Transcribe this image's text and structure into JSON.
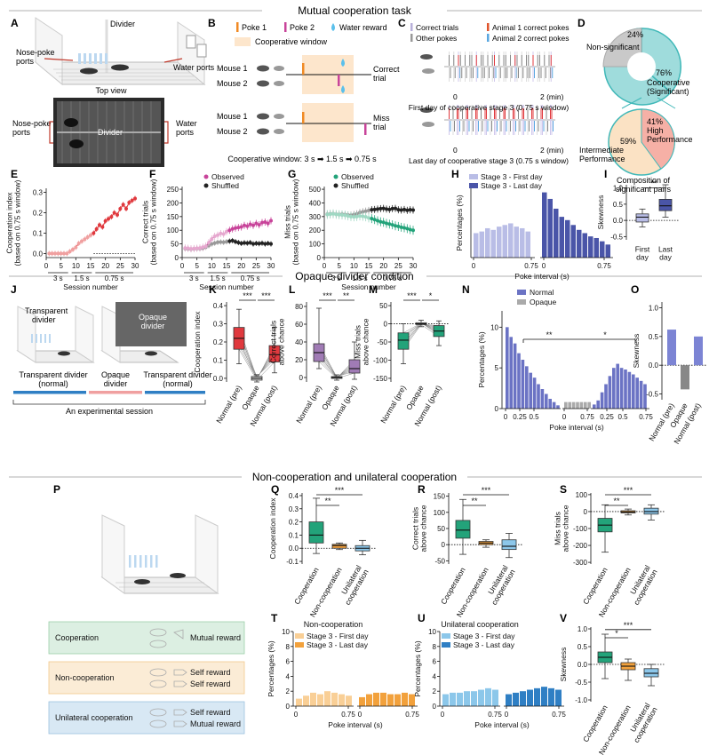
{
  "colors": {
    "red": "#e0393e",
    "lightred": "#f0a0a0",
    "pink": "#c8449a",
    "lightpink": "#e6a8cf",
    "green": "#23a37a",
    "lightgreen": "#9fd8c3",
    "gray": "#999999",
    "black": "#1a1a1a",
    "navy": "#4a55a8",
    "lavender": "#b9bde6",
    "orange": "#f2a13c",
    "lightorange": "#f9cf96",
    "blue": "#2f7fc4",
    "lightblue": "#8cc7ea",
    "teal": "#40c0c0",
    "salmon": "#f4a9a0",
    "coopbox": "#dcefe2",
    "noncoopbox": "#fbecd6",
    "unibox": "#d8e8f4"
  },
  "sections": {
    "mutual": "Mutual cooperation task",
    "opaque": "Opaque-divider condition",
    "noncoop": "Non-cooperation and unilateral cooperation"
  },
  "panel_letters": {
    "A": "A",
    "B": "B",
    "C": "C",
    "D": "D",
    "E": "E",
    "F": "F",
    "G": "G",
    "H": "H",
    "I": "I",
    "J": "J",
    "K": "K",
    "L": "L",
    "M": "M",
    "N": "N",
    "O": "O",
    "P": "P",
    "Q": "Q",
    "R": "R",
    "S": "S",
    "T": "T",
    "U": "U",
    "V": "V"
  },
  "A": {
    "divider": "Divider",
    "nose_poke": "Nose-poke\nports",
    "water_ports": "Water ports",
    "top_view": "Top view",
    "divider2": "Divider",
    "nose_poke2": "Nose-poke\nports",
    "water_ports2": "Water\nports"
  },
  "B": {
    "poke1": "Poke 1",
    "poke2": "Poke 2",
    "water": "Water reward",
    "window": "Cooperative window",
    "mouse1": "Mouse 1",
    "mouse2": "Mouse 2",
    "correct": "Correct\ntrial",
    "miss": "Miss\ntrial",
    "caption": "Cooperative window: 3 s ➡ 1.5 s ➡ 0.75 s"
  },
  "C": {
    "correct": "Correct trials",
    "other": "Other pokes",
    "a1": "Animal 1 correct pokes",
    "a2": "Animal 2 correct pokes",
    "t0": "0",
    "t2": "2 (min)",
    "first": "First day of cooperative stage 3 (0.75 s window)",
    "last": "Last day of cooperative stage 3 (0.75 s window)"
  },
  "D": {
    "nonsig_pct": "24%",
    "nonsig": "Non-significant",
    "coop_pct": "76%",
    "coop": "Cooperative\n(Significant)",
    "high_pct": "41%",
    "high": "High\nPerformance",
    "inter_pct": "59%",
    "inter": "Intermediate\nPerformance",
    "caption": "Composition of\nsignificant pairs"
  },
  "E": {
    "ylabel": "Cooperation index\n(based on 0.75 s window)",
    "xlabel": "Session number",
    "yticks": [
      "0.0",
      "0.1",
      "0.2",
      "0.3"
    ],
    "xticks": [
      "0",
      "5",
      "10",
      "15",
      "20",
      "25",
      "30"
    ],
    "stages": [
      "3 s",
      "1.5 s",
      "0.75 s"
    ],
    "observed": [
      0.0,
      0.0,
      0.0,
      0.0,
      0.0,
      0.0,
      0.0,
      0.01,
      0.02,
      0.03,
      0.05,
      0.06,
      0.07,
      0.08,
      0.09,
      0.1,
      0.12,
      0.14,
      0.13,
      0.16,
      0.17,
      0.18,
      0.2,
      0.19,
      0.22,
      0.24,
      0.22,
      0.25,
      0.26,
      0.27
    ]
  },
  "F": {
    "ylabel": "Correct trials\n(based on 0.75 s window)",
    "xlabel": "Session number",
    "legend": [
      "Observed",
      "Shuffled"
    ],
    "yticks": [
      "0",
      "50",
      "100",
      "150",
      "200",
      "250"
    ],
    "xticks": [
      "0",
      "5",
      "10",
      "15",
      "20",
      "25",
      "30"
    ],
    "stages": [
      "3 s",
      "1.5 s",
      "0.75 s"
    ],
    "observed": [
      35,
      34,
      32,
      33,
      34,
      35,
      38,
      42,
      55,
      68,
      78,
      82,
      88,
      86,
      95,
      100,
      105,
      108,
      110,
      112,
      118,
      115,
      122,
      118,
      125,
      120,
      128,
      130,
      125,
      135
    ],
    "shuffled": [
      33,
      32,
      31,
      32,
      33,
      33,
      34,
      38,
      44,
      50,
      53,
      56,
      57,
      56,
      58,
      60,
      62,
      58,
      55,
      52,
      54,
      53,
      55,
      50,
      52,
      51,
      53,
      50,
      52,
      50
    ]
  },
  "G": {
    "ylabel": "Miss trials\n(based on 0.75 s window)",
    "xlabel": "Session number",
    "legend": [
      "Observed",
      "Shuffled"
    ],
    "yticks": [
      "0",
      "100",
      "200",
      "300",
      "400",
      "500"
    ],
    "xticks": [
      "0",
      "5",
      "10",
      "15",
      "20",
      "25",
      "30"
    ],
    "stages": [
      "3 s",
      "1.5 s",
      "0.75 s"
    ],
    "observed": [
      315,
      318,
      320,
      316,
      314,
      312,
      310,
      305,
      300,
      298,
      300,
      305,
      302,
      298,
      290,
      285,
      278,
      270,
      262,
      258,
      250,
      245,
      240,
      232,
      228,
      222,
      218,
      212,
      205,
      200
    ],
    "shuffled": [
      318,
      320,
      322,
      318,
      316,
      318,
      315,
      312,
      310,
      315,
      320,
      330,
      335,
      340,
      345,
      350,
      352,
      355,
      358,
      360,
      355,
      352,
      358,
      360,
      350,
      348,
      352,
      346,
      350,
      348
    ]
  },
  "H": {
    "legend": [
      "Stage 3 - First day",
      "Stage 3 - Last day"
    ],
    "ylabel": "Percentages (%)",
    "xlabel": "Poke interval (s)",
    "xticks": [
      "0",
      "0.75",
      "0",
      "0.75"
    ],
    "first": [
      3,
      3.2,
      3.6,
      3.4,
      3.8,
      4,
      4.2,
      3.8,
      3.6,
      3.2,
      0,
      0
    ],
    "last": [
      8,
      7.2,
      6,
      5,
      4.6,
      4,
      3.4,
      3,
      2.6,
      2.4,
      2,
      1.6
    ]
  },
  "I": {
    "ylabel": "Skewness",
    "yticks": [
      "-0.5",
      "0.0",
      "0.5",
      "1.0"
    ],
    "cats": [
      "First\nday",
      "Last\nday"
    ],
    "sig": "**"
  },
  "J": {
    "transparent": "Transparent\ndivider",
    "opaque": "Opaque\ndivider",
    "seg1": "Transparent divider\n(normal)",
    "seg2": "Opaque\ndivider",
    "seg3": "Transparent divider\n(normal)",
    "caption": "An experimental session"
  },
  "K": {
    "ylabel": "Cooperation index",
    "yticks": [
      "0.0",
      "0.1",
      "0.2",
      "0.3",
      "0.4"
    ],
    "cats": [
      "Normal (pre)",
      "Opaque",
      "Normal (post)"
    ],
    "sig": [
      "***",
      "***"
    ]
  },
  "L": {
    "ylabel": "Correct trials\nabove chance",
    "yticks": [
      "0",
      "20",
      "40",
      "60",
      "80"
    ],
    "cats": [
      "Normal (pre)",
      "Opaque",
      "Normal (post)"
    ],
    "sig": [
      "***",
      "**"
    ]
  },
  "M": {
    "ylabel": "Miss trials\nabove chance",
    "yticks": [
      "-150",
      "-100",
      "-50",
      "0",
      "50"
    ],
    "cats": [
      "Normal (pre)",
      "Opaque",
      "Normal (post)"
    ],
    "sig": [
      "***",
      "*"
    ]
  },
  "N": {
    "legend": [
      "Normal",
      "Opaque"
    ],
    "ylabel": "Percentages (%)",
    "xlabel": "Poke interval (s)",
    "yticks": [
      "0",
      "5",
      "10"
    ],
    "xticks": [
      "0",
      "0.25",
      "0.5",
      "0",
      "0.75",
      "0.25",
      "0.5",
      "0.75"
    ],
    "sig": [
      "**",
      "*"
    ],
    "pre": [
      10,
      8.8,
      8,
      6.8,
      6,
      5.2,
      4.4,
      3.8,
      3,
      2.4,
      1.8,
      1.2,
      0.8,
      0.4
    ],
    "opaque": [
      0.8,
      0.8,
      0.8,
      0.8,
      0.8,
      0.8,
      0.8
    ],
    "post": [
      0.5,
      1,
      2,
      3,
      4,
      5,
      5.5,
      5,
      4.8,
      4.5,
      4.2,
      3.8,
      3.4,
      3
    ]
  },
  "O": {
    "ylabel": "Skewness",
    "yticks": [
      "-0.5",
      "0.0",
      "0.5",
      "1.0"
    ],
    "cats": [
      "Normal (pre)",
      "Opaque",
      "Normal (post)"
    ],
    "values": [
      0.62,
      -0.42,
      0.5
    ]
  },
  "P": {
    "rows": [
      {
        "label": "Cooperation",
        "r1": "Mutual reward",
        "r2": ""
      },
      {
        "label": "Non-cooperation",
        "r1": "Self reward",
        "r2": "Self reward"
      },
      {
        "label": "Unilateral cooperation",
        "r1": "Self reward",
        "r2": "Mutual reward"
      }
    ]
  },
  "Q": {
    "ylabel": "Cooperation index",
    "yticks": [
      "-0.1",
      "0.0",
      "0.1",
      "0.2",
      "0.3",
      "0.4"
    ],
    "cats": [
      "Cooperation",
      "Non-cooperation",
      "Unilateral\ncooperation"
    ],
    "sig": [
      "**",
      "***"
    ]
  },
  "R": {
    "ylabel": "Correct trials\nabove chance",
    "yticks": [
      "-50",
      "0",
      "50",
      "100",
      "150"
    ],
    "cats": [
      "Cooperation",
      "Non-cooperation",
      "Unilateral\ncooperation"
    ],
    "sig": [
      "**",
      "***"
    ]
  },
  "S": {
    "ylabel": "Miss trials\nabove chance",
    "yticks": [
      "-300",
      "-200",
      "-100",
      "0",
      "100"
    ],
    "cats": [
      "Cooperation",
      "Non-cooperation",
      "Unilateral\ncooperation"
    ],
    "sig": [
      "**",
      "***"
    ]
  },
  "T": {
    "title": "Non-cooperation",
    "legend": [
      "Stage 3 - First day",
      "Stage 3 - Last day"
    ],
    "ylabel": "Percentages (%)",
    "xlabel": "Poke interval (s)",
    "yticks": [
      "0",
      "2",
      "4",
      "6",
      "8",
      "10"
    ],
    "xticks": [
      "0",
      "0.75",
      "0",
      "0.75"
    ],
    "first": [
      1,
      1.4,
      1.8,
      1.6,
      2,
      1.8,
      1.6,
      1.4
    ],
    "last": [
      1.2,
      1.6,
      1.8,
      1.8,
      1.6,
      1.6,
      1.8,
      1.6
    ]
  },
  "U": {
    "title": "Unilateral cooperation",
    "legend": [
      "Stage 3 - First day",
      "Stage 3 - Last day"
    ],
    "ylabel": "Percentages (%)",
    "xlabel": "Poke interval (s)",
    "yticks": [
      "0",
      "2",
      "4",
      "6",
      "8",
      "10"
    ],
    "xticks": [
      "0",
      "0.75",
      "0",
      "0.75"
    ],
    "first": [
      1.6,
      1.8,
      1.8,
      2,
      2,
      2.2,
      2.4,
      2.2
    ],
    "last": [
      1.6,
      1.8,
      2,
      2.2,
      2.4,
      2.6,
      2.4,
      2.2
    ]
  },
  "V": {
    "ylabel": "Skewness",
    "yticks": [
      "-1.0",
      "-0.5",
      "0.0",
      "0.5",
      "1.0"
    ],
    "cats": [
      "Cooperation",
      "Non-cooperation",
      "Unilateral\ncooperation"
    ],
    "sig": [
      "*",
      "***"
    ]
  }
}
